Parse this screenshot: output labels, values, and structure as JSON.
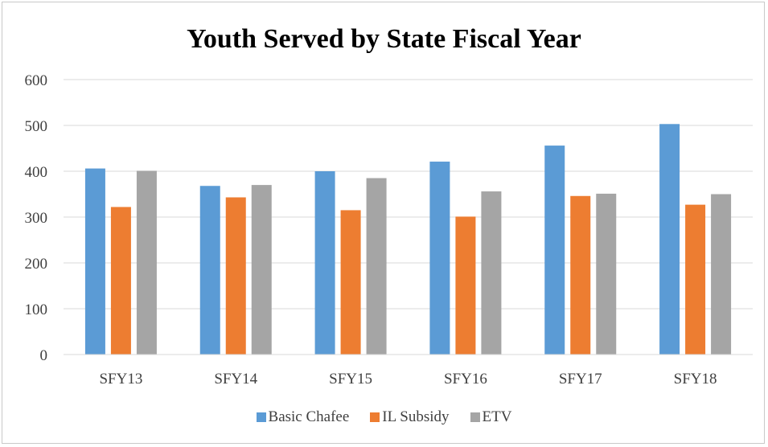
{
  "chart_data": {
    "type": "bar",
    "title": "Youth Served by State Fiscal Year",
    "xlabel": "",
    "ylabel": "",
    "categories": [
      "SFY13",
      "SFY14",
      "SFY15",
      "SFY16",
      "SFY17",
      "SFY18"
    ],
    "series": [
      {
        "name": "Basic Chafee",
        "color": "#5B9BD5",
        "values": [
          406,
          368,
          400,
          421,
          456,
          503
        ]
      },
      {
        "name": "IL Subsidy",
        "color": "#ED7D31",
        "values": [
          322,
          343,
          315,
          301,
          346,
          327
        ]
      },
      {
        "name": "ETV",
        "color": "#A5A5A5",
        "values": [
          401,
          370,
          385,
          356,
          351,
          350
        ]
      }
    ],
    "ylim": [
      0,
      600
    ],
    "yticks": [
      0,
      100,
      200,
      300,
      400,
      500,
      600
    ],
    "grid": true,
    "legend_position": "bottom"
  }
}
